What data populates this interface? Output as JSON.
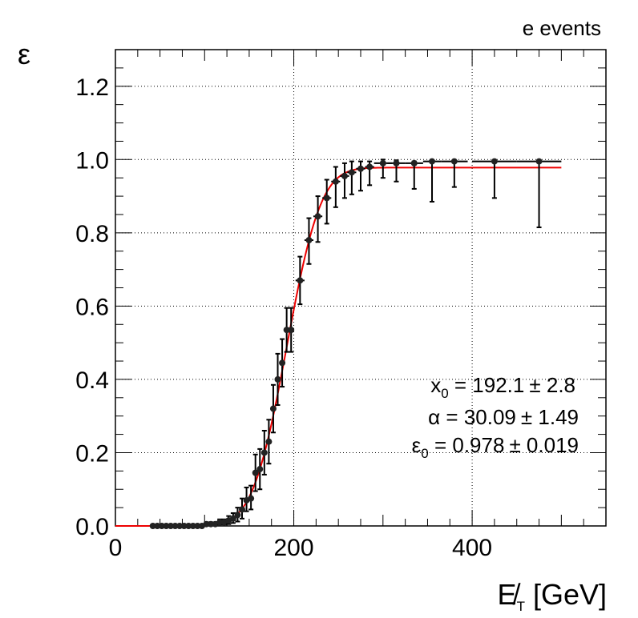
{
  "chart_data": {
    "type": "scatter",
    "corner_label": "e events",
    "ylabel": "ε",
    "xlabel": "E̸T [GeV]",
    "xlabel_main": "E̸",
    "xlabel_sub": "T",
    "xlabel_unit": "[GeV]",
    "xlim": [
      0,
      550
    ],
    "ylim": [
      0,
      1.3
    ],
    "x_ticks": [
      0,
      200,
      400
    ],
    "x_tick_labels": [
      "0",
      "200",
      "400"
    ],
    "y_ticks": [
      0.0,
      0.2,
      0.4,
      0.6,
      0.8,
      1.0,
      1.2
    ],
    "y_tick_labels": [
      "0.0",
      "0.2",
      "0.4",
      "0.6",
      "0.8",
      "1.0",
      "1.2"
    ],
    "grid": true,
    "grid_style": "dotted",
    "series": [
      {
        "kind": "points",
        "color": "#000000",
        "x": [
          42,
          47,
          52,
          57,
          62,
          67,
          72,
          77,
          82,
          87,
          92,
          97,
          102,
          107,
          112,
          117,
          122,
          127,
          132,
          137,
          142,
          147,
          152,
          157,
          162,
          167,
          172,
          177,
          182,
          187,
          192,
          197,
          207,
          217,
          227,
          237,
          247,
          257,
          265,
          275,
          285,
          300,
          315,
          335,
          355,
          380,
          425,
          475
        ],
        "y": [
          0.0,
          0.0,
          0.0,
          0.0,
          0.0,
          0.0,
          0.0,
          0.0,
          0.0,
          0.0,
          0.0,
          0.0,
          0.005,
          0.005,
          0.005,
          0.01,
          0.01,
          0.015,
          0.02,
          0.03,
          0.045,
          0.07,
          0.075,
          0.145,
          0.155,
          0.2,
          0.23,
          0.32,
          0.4,
          0.445,
          0.535,
          0.535,
          0.67,
          0.78,
          0.845,
          0.895,
          0.94,
          0.955,
          0.965,
          0.975,
          0.98,
          0.99,
          0.99,
          0.99,
          0.995,
          0.995,
          0.995,
          0.995
        ],
        "xerr": [
          2.5,
          2.5,
          2.5,
          2.5,
          2.5,
          2.5,
          2.5,
          2.5,
          2.5,
          2.5,
          2.5,
          2.5,
          2.5,
          2.5,
          2.5,
          2.5,
          2.5,
          2.5,
          2.5,
          2.5,
          2.5,
          2.5,
          2.5,
          2.5,
          2.5,
          2.5,
          2.5,
          2.5,
          2.5,
          2.5,
          2.5,
          2.5,
          5,
          5,
          5,
          5,
          5,
          5,
          5,
          5,
          5,
          10,
          10,
          10,
          10,
          15,
          25,
          25
        ],
        "yerr_low": [
          0,
          0,
          0,
          0,
          0,
          0,
          0,
          0,
          0,
          0,
          0,
          0,
          0.003,
          0.003,
          0.003,
          0.006,
          0.006,
          0.01,
          0.012,
          0.018,
          0.025,
          0.03,
          0.03,
          0.05,
          0.055,
          0.06,
          0.06,
          0.065,
          0.07,
          0.065,
          0.06,
          0.06,
          0.065,
          0.065,
          0.07,
          0.07,
          0.07,
          0.06,
          0.06,
          0.06,
          0.05,
          0.04,
          0.05,
          0.07,
          0.11,
          0.07,
          0.1,
          0.18
        ],
        "yerr_high": [
          0,
          0,
          0,
          0,
          0,
          0,
          0,
          0,
          0,
          0,
          0,
          0,
          0.005,
          0.005,
          0.005,
          0.008,
          0.008,
          0.012,
          0.015,
          0.02,
          0.03,
          0.035,
          0.035,
          0.05,
          0.055,
          0.06,
          0.06,
          0.065,
          0.07,
          0.065,
          0.06,
          0.06,
          0.065,
          0.06,
          0.055,
          0.05,
          0.04,
          0.035,
          0.03,
          0.02,
          0.015,
          0.01,
          0.008,
          0.005,
          0.003,
          0.003,
          0.003,
          0.003
        ]
      },
      {
        "kind": "fit",
        "color": "#ee0000",
        "x_range": [
          0,
          500
        ],
        "x0": 192.1,
        "alpha": 30.09,
        "eps0": 0.978
      }
    ],
    "fit_params": [
      {
        "symbol": "x",
        "sub": "0",
        "value": " = 192.1",
        "err": "± 2.8"
      },
      {
        "symbol": "α",
        "sub": "",
        "value": " = 30.09",
        "err": "± 1.49"
      },
      {
        "symbol": "ε",
        "sub": "0",
        "value": " = 0.978",
        "err": "± 0.019"
      }
    ]
  }
}
